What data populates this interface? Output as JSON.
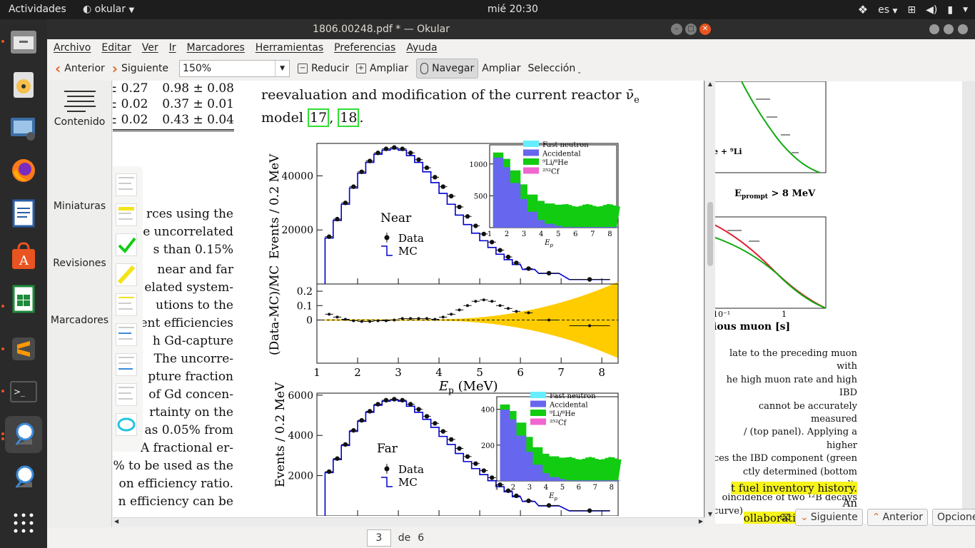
{
  "topbar": {
    "activities": "Actividades",
    "app_name": "okular",
    "clock": "mié 20:30",
    "language": "es"
  },
  "window": {
    "title": "1806.00248.pdf * — Okular"
  },
  "menu": [
    "Archivo",
    "Editar",
    "Ver",
    "Ir",
    "Marcadores",
    "Herramientas",
    "Preferencias",
    "Ayuda"
  ],
  "toolbar": {
    "prev": "Anterior",
    "next": "Siguiente",
    "zoom": "150%",
    "zoom_out": "Reducir",
    "zoom_in": "Ampliar",
    "browse": "Navegar",
    "magnify": "Ampliar",
    "selection": "Selección"
  },
  "sidebar": {
    "items": [
      "Contenido",
      "Miniaturas",
      "Revisiones",
      "Marcadores"
    ]
  },
  "status": {
    "page": "3",
    "of": "de",
    "total": "6"
  },
  "document": {
    "table_rows": [
      {
        "left": "± 0.27",
        "right": "0.98 ± 0.08"
      },
      {
        "left": "± 0.02",
        "right": "0.37 ± 0.01"
      },
      {
        "left": "± 0.02",
        "right": "0.43 ± 0.04"
      }
    ],
    "top_line_1": "reevaluation and modification of the current reactor ν̄",
    "top_line_1_sub": "e",
    "top_line_2": "model",
    "cite_a": "17",
    "cite_b": "18",
    "left_column": [
      "rces using the",
      "e uncorrelated",
      "s than 0.15%",
      "",
      "near and far",
      "elated system-",
      "utions to the",
      "ent efficiencies",
      "h Gd-capture",
      "The uncorre-",
      "pture fraction",
      "of Gd concen-",
      "rtainty on the",
      "as 0.05% from",
      "%. A fractional er-",
      "% to be used as the",
      "on efficiency ratio.",
      "n efficiency can be"
    ]
  },
  "figure_text": {
    "near_label": "Near",
    "far_label": "Far",
    "data_legend": "Data",
    "mc_legend": "MC",
    "ylabel_main": "Events / 0.2 MeV",
    "ylabel_ratio": "(Data-MC)/MC",
    "xlabel_main": "E",
    "xlabel_sub": "p",
    "xlabel_unit": "(MeV)",
    "inset_legend": [
      "Fast neutron",
      "Accidental",
      "⁹Li/⁸He",
      "²⁵²Cf"
    ],
    "inset_xlabel": "E",
    "inset_xlabel_sub": "p"
  },
  "chart_data": [
    {
      "type": "line",
      "title": "Near",
      "xlabel": "Ep (MeV)",
      "ylabel": "Events / 0.2 MeV",
      "xlim": [
        1,
        8.4
      ],
      "ylim": [
        0,
        52000
      ],
      "xticks": [
        1,
        2,
        3,
        4,
        5,
        6,
        7,
        8
      ],
      "yticks": [
        20000,
        40000
      ],
      "series": [
        {
          "name": "Data",
          "x": [
            1.3,
            1.5,
            1.7,
            1.9,
            2.1,
            2.3,
            2.5,
            2.7,
            2.9,
            3.1,
            3.3,
            3.5,
            3.7,
            3.9,
            4.1,
            4.3,
            4.5,
            4.7,
            4.9,
            5.1,
            5.3,
            5.5,
            5.7,
            5.9,
            6.2,
            6.7,
            7.7
          ],
          "y": [
            17500,
            24000,
            30000,
            36000,
            41500,
            45500,
            48500,
            50000,
            50500,
            50000,
            48500,
            46000,
            43000,
            39500,
            36000,
            32500,
            28500,
            25000,
            21500,
            18500,
            15500,
            12500,
            10000,
            7800,
            5700,
            4000,
            1700
          ]
        },
        {
          "name": "MC",
          "x": [
            1.3,
            1.5,
            1.7,
            1.9,
            2.1,
            2.3,
            2.5,
            2.7,
            2.9,
            3.1,
            3.3,
            3.5,
            3.7,
            3.9,
            4.1,
            4.3,
            4.5,
            4.7,
            4.9,
            5.1,
            5.3,
            5.5,
            5.7,
            5.9,
            6.2,
            6.7,
            7.7
          ],
          "y": [
            17000,
            23500,
            29500,
            35500,
            41000,
            45000,
            48000,
            49500,
            50000,
            49500,
            47500,
            45000,
            41500,
            37500,
            33500,
            29500,
            25500,
            22000,
            18800,
            16000,
            13500,
            11000,
            9000,
            7200,
            5400,
            3900,
            1650
          ]
        }
      ]
    },
    {
      "type": "scatter",
      "title": "",
      "xlabel": "Ep (MeV)",
      "ylabel": "(Data-MC)/MC",
      "xlim": [
        1,
        8.4
      ],
      "ylim": [
        -0.3,
        0.25
      ],
      "yticks": [
        0,
        0.1,
        0.2
      ],
      "series": [
        {
          "name": "",
          "x": [
            1.3,
            1.5,
            1.7,
            1.9,
            2.1,
            2.3,
            2.5,
            2.7,
            2.9,
            3.1,
            3.3,
            3.5,
            3.7,
            3.9,
            4.1,
            4.3,
            4.5,
            4.7,
            4.9,
            5.1,
            5.3,
            5.5,
            5.7,
            5.9,
            6.2,
            6.7,
            7.7
          ],
          "y": [
            0.04,
            0.02,
            0.005,
            -0.005,
            -0.01,
            -0.01,
            -0.005,
            -0.005,
            0.0,
            0.01,
            0.01,
            0.01,
            0.01,
            0.005,
            0.02,
            0.04,
            0.07,
            0.1,
            0.13,
            0.14,
            0.13,
            0.1,
            0.08,
            0.06,
            0.05,
            0.0,
            -0.04
          ]
        }
      ]
    },
    {
      "type": "line",
      "title": "Far",
      "xlabel": "Ep (MeV)",
      "ylabel": "Events / 0.2 MeV",
      "xlim": [
        1,
        8.4
      ],
      "ylim": [
        0,
        6100
      ],
      "yticks": [
        2000,
        4000,
        6000
      ],
      "series": [
        {
          "name": "Data",
          "x": [
            1.3,
            1.5,
            1.7,
            1.9,
            2.1,
            2.3,
            2.5,
            2.7,
            2.9,
            3.1,
            3.3,
            3.5,
            3.7,
            3.9,
            4.1,
            4.3,
            4.5,
            4.7,
            4.9,
            5.1,
            5.3,
            5.5,
            5.7,
            5.9,
            6.2,
            6.7,
            7.7
          ],
          "y": [
            2200,
            2850,
            3550,
            4250,
            4750,
            5200,
            5550,
            5750,
            5800,
            5750,
            5550,
            5300,
            4950,
            4600,
            4200,
            3800,
            3350,
            2950,
            2600,
            2250,
            1900,
            1550,
            1250,
            1000,
            750,
            520,
            260
          ]
        },
        {
          "name": "MC",
          "x": [
            1.3,
            1.5,
            1.7,
            1.9,
            2.1,
            2.3,
            2.5,
            2.7,
            2.9,
            3.1,
            3.3,
            3.5,
            3.7,
            3.9,
            4.1,
            4.3,
            4.5,
            4.7,
            4.9,
            5.1,
            5.3,
            5.5,
            5.7,
            5.9,
            6.2,
            6.7,
            7.7
          ],
          "y": [
            2150,
            2800,
            3500,
            4200,
            4700,
            5150,
            5500,
            5700,
            5750,
            5700,
            5450,
            5150,
            4800,
            4400,
            3950,
            3550,
            3100,
            2700,
            2350,
            2050,
            1750,
            1450,
            1200,
            950,
            720,
            500,
            250
          ]
        }
      ]
    }
  ],
  "background_window": {
    "inset_label_1": "e + ⁹Li",
    "inset_label_2": "E",
    "inset_label_2_sub": "prompt",
    "inset_label_2_rest": "> 8 MeV",
    "axis_tick_a": "10⁻¹",
    "axis_tick_b": "1",
    "axis_label": "ious muon [s]",
    "caption_lines": [
      "late to the preceding muon with",
      "he high muon rate and high IBD",
      "cannot be accurately measured",
      "/ (top panel). Applying a higher",
      "ces the IBD component (green",
      "ctly determined (bottom panel).",
      "oincidence of two ¹²B decays",
      "curve)."
    ],
    "highlight_1": "t fuel inventory history.",
    "highlight_1_rest": "An",
    "highlight_2": "ollaboration with the nuclear",
    "find_next": "Siguiente",
    "find_prev": "Anterior",
    "find_options": "Opciones"
  },
  "colors": {
    "fast_neutron": "#66eeff",
    "accidental": "#6666ee",
    "li_he": "#11cc11",
    "cf": "#f066d0",
    "uncertainty_band": "#ffcc00",
    "mc_line": "#0000cc",
    "ubuntu_orange": "#e95420"
  }
}
